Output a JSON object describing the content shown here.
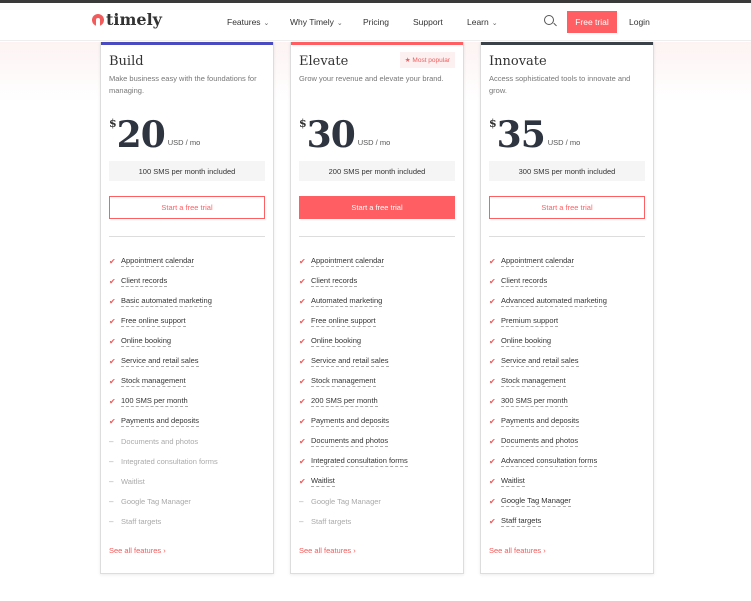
{
  "header": {
    "logo": "timely",
    "nav": [
      {
        "label": "Features",
        "dropdown": true
      },
      {
        "label": "Why Timely",
        "dropdown": true
      },
      {
        "label": "Pricing",
        "dropdown": false
      },
      {
        "label": "Support",
        "dropdown": false
      },
      {
        "label": "Learn",
        "dropdown": true
      }
    ],
    "free_trial": "Free trial",
    "login": "Login"
  },
  "plans": [
    {
      "name": "Build",
      "accent": "#4a4bc0",
      "description": "Make business easy with the foundations for managing.",
      "currency": "$",
      "price": "20",
      "period": "USD / mo",
      "sms": "100 SMS per month included",
      "cta": "Start a free trial",
      "cta_solid": false,
      "badge": "",
      "see_all": "See all features ›",
      "features": [
        [
          "Appointment calendar",
          true
        ],
        [
          "Client records",
          true
        ],
        [
          "Basic automated marketing",
          true
        ],
        [
          "Free online support",
          true
        ],
        [
          "Online booking",
          true
        ],
        [
          "Service and retail sales",
          true
        ],
        [
          "Stock management",
          true
        ],
        [
          "100 SMS per month",
          true
        ],
        [
          "Payments and deposits",
          true
        ],
        [
          "Documents and photos",
          false
        ],
        [
          "Integrated consultation forms",
          false
        ],
        [
          "Waitlist",
          false
        ],
        [
          "Google Tag Manager",
          false
        ],
        [
          "Staff targets",
          false
        ]
      ]
    },
    {
      "name": "Elevate",
      "accent": "#ff5f63",
      "description": "Grow your revenue and elevate your brand.",
      "currency": "$",
      "price": "30",
      "period": "USD / mo",
      "sms": "200 SMS per month included",
      "cta": "Start a free trial",
      "cta_solid": true,
      "badge": "★ Most popular",
      "see_all": "See all features ›",
      "features": [
        [
          "Appointment calendar",
          true
        ],
        [
          "Client records",
          true
        ],
        [
          "Automated marketing",
          true
        ],
        [
          "Free online support",
          true
        ],
        [
          "Online booking",
          true
        ],
        [
          "Service and retail sales",
          true
        ],
        [
          "Stock management",
          true
        ],
        [
          "200 SMS per month",
          true
        ],
        [
          "Payments and deposits",
          true
        ],
        [
          "Documents and photos",
          true
        ],
        [
          "Integrated consultation forms",
          true
        ],
        [
          "Waitlist",
          true
        ],
        [
          "Google Tag Manager",
          false
        ],
        [
          "Staff targets",
          false
        ]
      ]
    },
    {
      "name": "Innovate",
      "accent": "#3a4148",
      "description": "Access sophisticated tools to innovate and grow.",
      "currency": "$",
      "price": "35",
      "period": "USD / mo",
      "sms": "300 SMS per month included",
      "cta": "Start a free trial",
      "cta_solid": false,
      "badge": "",
      "see_all": "See all features ›",
      "features": [
        [
          "Appointment calendar",
          true
        ],
        [
          "Client records",
          true
        ],
        [
          "Advanced automated marketing",
          true
        ],
        [
          "Premium support",
          true
        ],
        [
          "Online booking",
          true
        ],
        [
          "Service and retail sales",
          true
        ],
        [
          "Stock management",
          true
        ],
        [
          "300 SMS per month",
          true
        ],
        [
          "Payments and deposits",
          true
        ],
        [
          "Documents and photos",
          true
        ],
        [
          "Advanced consultation forms",
          true
        ],
        [
          "Waitlist",
          true
        ],
        [
          "Google Tag Manager",
          true
        ],
        [
          "Staff targets",
          true
        ]
      ]
    }
  ]
}
